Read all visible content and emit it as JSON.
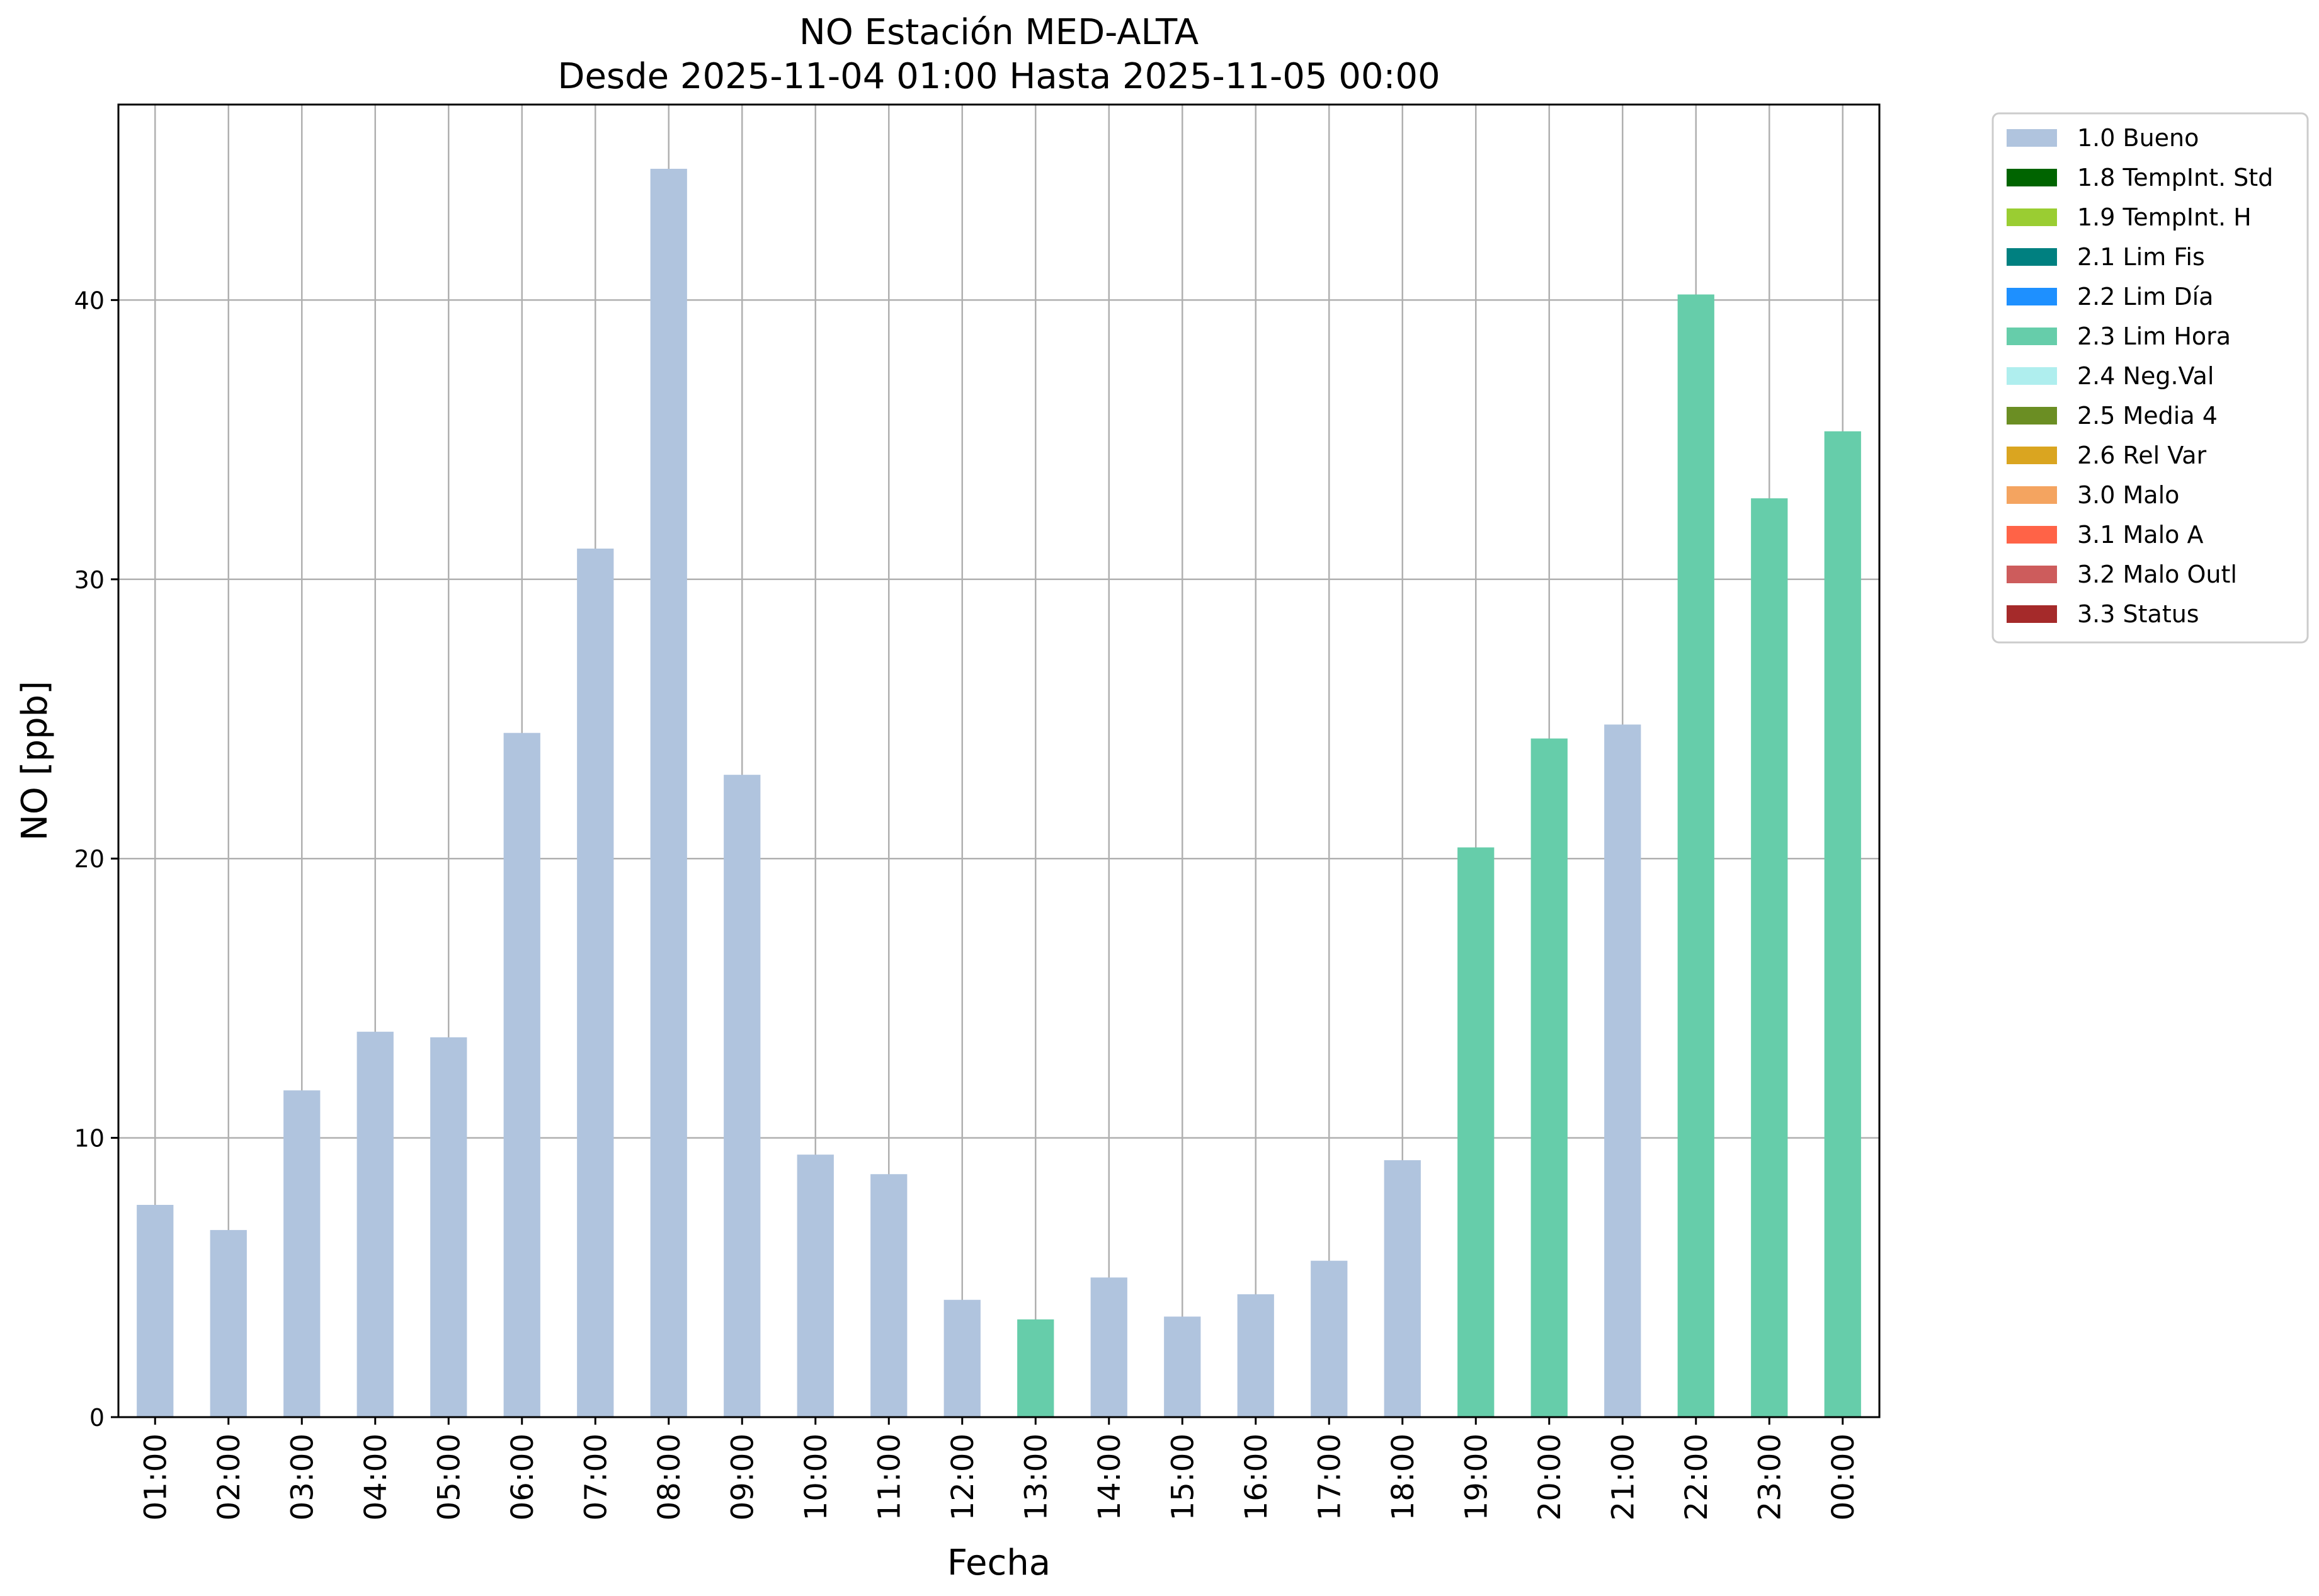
{
  "chart_data": {
    "type": "bar",
    "title": "NO Estación MED-ALTA",
    "subtitle": "Desde 2025-11-04 01:00 Hasta 2025-11-05 00:00",
    "xlabel": "Fecha",
    "ylabel": "NO [ppb]",
    "ylim": [
      0,
      47
    ],
    "yticks": [
      0,
      10,
      20,
      30,
      40
    ],
    "grid": true,
    "legend_position": "outside-top-right",
    "categories": [
      "01:00",
      "02:00",
      "03:00",
      "04:00",
      "05:00",
      "06:00",
      "07:00",
      "08:00",
      "09:00",
      "10:00",
      "11:00",
      "12:00",
      "13:00",
      "14:00",
      "15:00",
      "16:00",
      "17:00",
      "18:00",
      "19:00",
      "20:00",
      "21:00",
      "22:00",
      "23:00",
      "00:00"
    ],
    "values": [
      7.6,
      6.7,
      11.7,
      13.8,
      13.6,
      24.5,
      31.1,
      44.7,
      23.0,
      9.4,
      8.7,
      4.2,
      3.5,
      5.0,
      3.6,
      4.4,
      5.6,
      9.2,
      20.4,
      24.3,
      24.8,
      40.2,
      32.9,
      35.3
    ],
    "flags": [
      "1.0 Bueno",
      "1.0 Bueno",
      "1.0 Bueno",
      "1.0 Bueno",
      "1.0 Bueno",
      "1.0 Bueno",
      "1.0 Bueno",
      "1.0 Bueno",
      "1.0 Bueno",
      "1.0 Bueno",
      "1.0 Bueno",
      "1.0 Bueno",
      "2.3 Lim Hora",
      "1.0 Bueno",
      "1.0 Bueno",
      "1.0 Bueno",
      "1.0 Bueno",
      "1.0 Bueno",
      "2.3 Lim Hora",
      "2.3 Lim Hora",
      "1.0 Bueno",
      "2.3 Lim Hora",
      "2.3 Lim Hora",
      "2.3 Lim Hora"
    ],
    "legend": [
      {
        "label": "1.0 Bueno",
        "color": "#b0c4de"
      },
      {
        "label": "1.8 TempInt. Std",
        "color": "#006400"
      },
      {
        "label": "1.9 TempInt. H",
        "color": "#9acd32"
      },
      {
        "label": "2.1 Lim Fis",
        "color": "#008080"
      },
      {
        "label": "2.2 Lim Día",
        "color": "#1e90ff"
      },
      {
        "label": "2.3 Lim Hora",
        "color": "#66cdaa"
      },
      {
        "label": "2.4 Neg.Val",
        "color": "#afeeee"
      },
      {
        "label": "2.5 Media 4",
        "color": "#6b8e23"
      },
      {
        "label": "2.6 Rel Var",
        "color": "#daa520"
      },
      {
        "label": "3.0 Malo",
        "color": "#f4a460"
      },
      {
        "label": "3.1 Malo A",
        "color": "#ff6347"
      },
      {
        "label": "3.2 Malo Outl",
        "color": "#cd5c5c"
      },
      {
        "label": "3.3 Status",
        "color": "#a52a2a"
      }
    ]
  }
}
